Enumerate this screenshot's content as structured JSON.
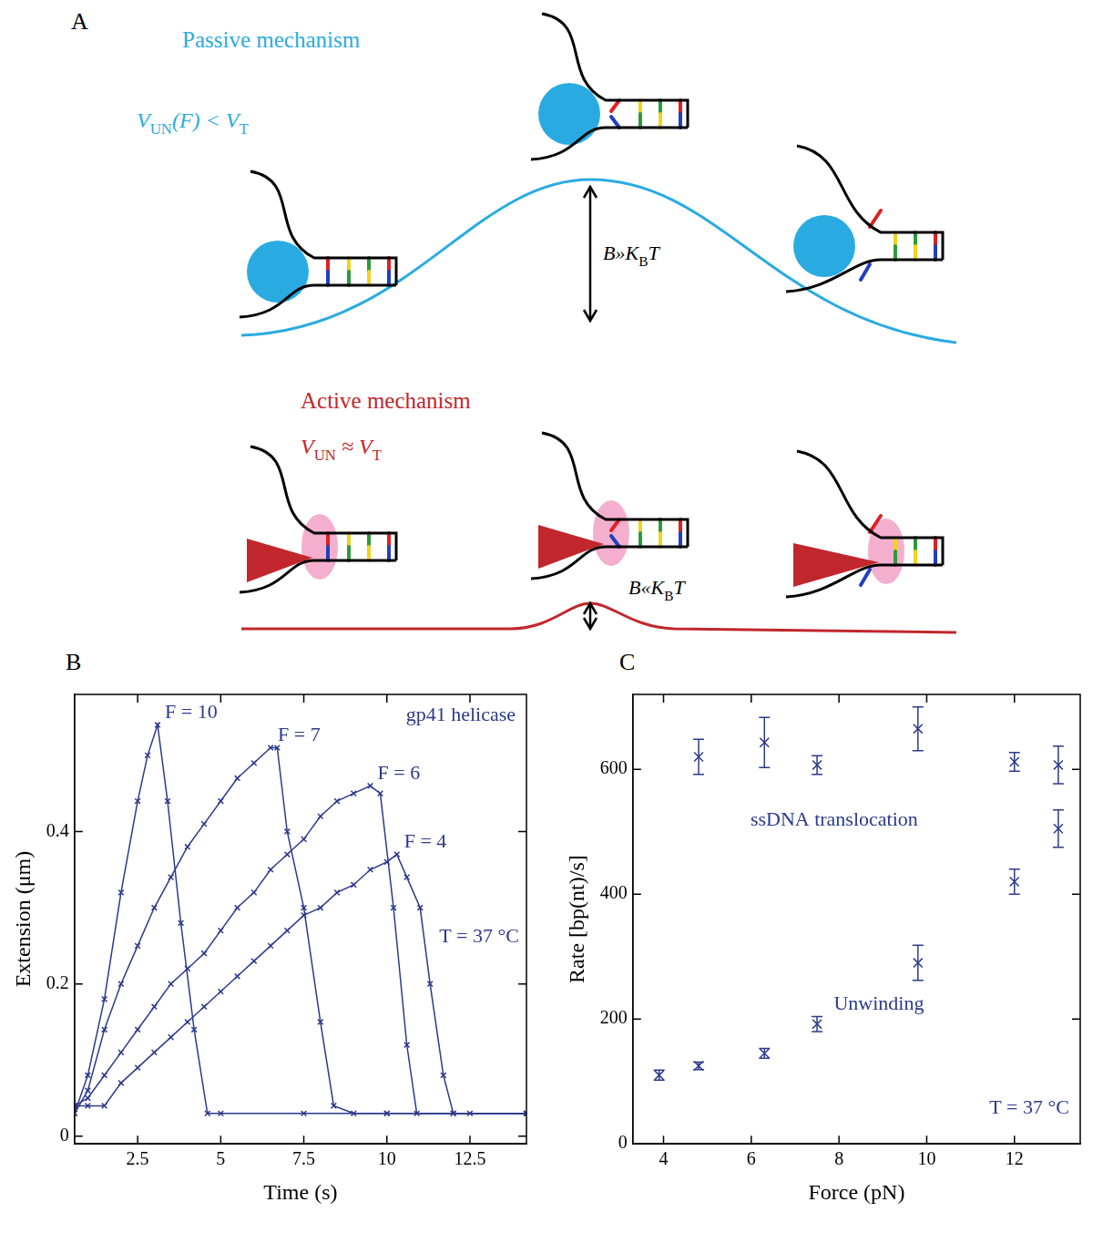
{
  "diagram": {
    "panel": "A",
    "passive": {
      "title": "Passive mechanism",
      "condition": [
        {
          "text": "V",
          "italic": true
        },
        {
          "text": "UN",
          "sub": true
        },
        {
          "text": "(F) < ",
          "italic": true
        },
        {
          "text": "V",
          "italic": true
        },
        {
          "text": "T",
          "sub": true
        }
      ],
      "barrier": [
        {
          "text": "B»K",
          "italic": true
        },
        {
          "text": "B",
          "sub": true
        },
        {
          "text": "T",
          "italic": true
        }
      ]
    },
    "active": {
      "title": "Active mechanism",
      "condition": [
        {
          "text": "V",
          "italic": true
        },
        {
          "text": "UN",
          "sub": true
        },
        {
          "text": " ≈ ",
          "italic": true
        },
        {
          "text": "V",
          "italic": true
        },
        {
          "text": "T",
          "sub": true
        }
      ],
      "barrier": [
        {
          "text": "B«K",
          "italic": true
        },
        {
          "text": "B",
          "sub": true
        },
        {
          "text": "T",
          "italic": true
        }
      ]
    }
  },
  "chart_data": [
    {
      "panel": "B",
      "type": "line",
      "x_label": "Time (s)",
      "y_label": "Extension (μm)",
      "annotations": [
        "gp41 helicase",
        "T = 37 °C"
      ],
      "xlim": [
        0.6,
        14.2
      ],
      "xticks": [
        2.5,
        5,
        7.5,
        10,
        12.5
      ],
      "ylim": [
        -0.01,
        0.58
      ],
      "yticks": [
        0,
        0.2,
        0.4
      ],
      "grid": false,
      "marker": "x",
      "line_style": "solid",
      "series": [
        {
          "name": "F = 10",
          "color": "#2b3a8c",
          "x": [
            0.6,
            1.0,
            1.5,
            2.0,
            2.5,
            2.8,
            3.1,
            3.4,
            3.8,
            4.2,
            4.6,
            5.0,
            7.5,
            10.0,
            12.5,
            14.2
          ],
          "values": [
            0.03,
            0.08,
            0.18,
            0.32,
            0.44,
            0.5,
            0.54,
            0.44,
            0.28,
            0.14,
            0.03,
            0.03,
            0.03,
            0.03,
            0.03,
            0.03
          ]
        },
        {
          "name": "F = 7",
          "color": "#2b3a8c",
          "x": [
            0.6,
            1.0,
            1.5,
            2.0,
            2.5,
            3.0,
            3.5,
            4.0,
            4.5,
            5.0,
            5.5,
            6.0,
            6.5,
            6.7,
            7.0,
            7.5,
            8.0,
            8.4,
            9.0,
            10.0,
            14.2
          ],
          "values": [
            0.03,
            0.06,
            0.14,
            0.2,
            0.25,
            0.3,
            0.34,
            0.38,
            0.41,
            0.44,
            0.47,
            0.49,
            0.51,
            0.51,
            0.4,
            0.3,
            0.15,
            0.04,
            0.03,
            0.03,
            0.03
          ]
        },
        {
          "name": "F = 6",
          "color": "#2b3a8c",
          "x": [
            0.6,
            1.0,
            1.5,
            2.0,
            2.5,
            3.0,
            3.5,
            4.0,
            4.5,
            5.0,
            5.5,
            6.0,
            6.5,
            7.0,
            7.5,
            8.0,
            8.5,
            9.0,
            9.5,
            9.8,
            10.2,
            10.6,
            10.9,
            12.0,
            14.2
          ],
          "values": [
            0.04,
            0.05,
            0.08,
            0.11,
            0.14,
            0.17,
            0.2,
            0.22,
            0.24,
            0.27,
            0.3,
            0.32,
            0.35,
            0.37,
            0.39,
            0.42,
            0.44,
            0.45,
            0.46,
            0.45,
            0.3,
            0.12,
            0.03,
            0.03,
            0.03
          ]
        },
        {
          "name": "F = 4",
          "color": "#2b3a8c",
          "x": [
            0.6,
            1.0,
            1.5,
            2.0,
            2.5,
            3.0,
            3.5,
            4.0,
            4.5,
            5.0,
            5.5,
            6.0,
            6.5,
            7.0,
            7.5,
            8.0,
            8.5,
            9.0,
            9.5,
            10.0,
            10.3,
            10.6,
            11.0,
            11.3,
            11.7,
            12.0,
            14.2
          ],
          "values": [
            0.04,
            0.04,
            0.04,
            0.07,
            0.09,
            0.11,
            0.13,
            0.15,
            0.17,
            0.19,
            0.21,
            0.23,
            0.25,
            0.27,
            0.29,
            0.3,
            0.32,
            0.33,
            0.35,
            0.36,
            0.37,
            0.34,
            0.3,
            0.2,
            0.08,
            0.03,
            0.03
          ]
        }
      ]
    },
    {
      "panel": "C",
      "type": "scatter",
      "x_label": "Force (pN)",
      "y_label": "Rate [bp(nt)/s]",
      "annotations": [
        "T = 37 °C"
      ],
      "xlim": [
        3.3,
        13.5
      ],
      "xticks": [
        4,
        6,
        8,
        10,
        12
      ],
      "ylim": [
        0,
        720
      ],
      "yticks": [
        0,
        200,
        400,
        600
      ],
      "grid": false,
      "marker": "x",
      "series": [
        {
          "name": "ssDNA translocation",
          "color": "#2b3a8c",
          "x": [
            4.8,
            6.3,
            7.5,
            9.8,
            12.0,
            13.0
          ],
          "values": [
            620,
            643,
            607,
            665,
            612,
            607
          ],
          "errors": [
            28,
            40,
            15,
            35,
            15,
            30
          ]
        },
        {
          "name": "Unwinding",
          "color": "#2b3a8c",
          "x": [
            3.9,
            4.8,
            6.3,
            7.5,
            9.8,
            12.0,
            13.0
          ],
          "values": [
            110,
            125,
            145,
            192,
            290,
            420,
            505
          ],
          "errors": [
            8,
            6,
            8,
            12,
            28,
            20,
            30
          ]
        }
      ]
    }
  ]
}
